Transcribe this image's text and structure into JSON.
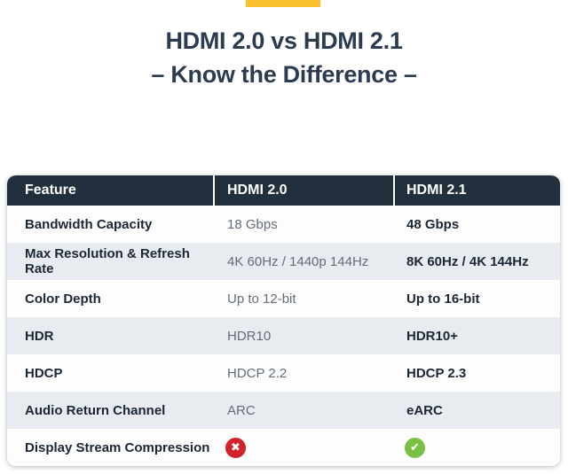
{
  "page": {
    "background": "#ffffff",
    "accent_color": "#fcc12f",
    "title_color": "#2b3c52",
    "title_line1": "HDMI 2.0 vs HDMI 2.1",
    "title_line2": "– Know the Difference –"
  },
  "table": {
    "header_bg": "#22303e",
    "stripe_bg": "#e8ecf1",
    "columns": [
      "Feature",
      "HDMI 2.0",
      "HDMI 2.1"
    ],
    "rows": [
      {
        "feature": "Bandwidth Capacity",
        "hdmi20": "18 Gbps",
        "hdmi21": "48 Gbps"
      },
      {
        "feature": "Max Resolution & Refresh Rate",
        "hdmi20": "4K 60Hz / 1440p 144Hz",
        "hdmi21": "8K 60Hz / 4K 144Hz"
      },
      {
        "feature": "Color Depth",
        "hdmi20": "Up to 12-bit",
        "hdmi21": "Up to 16-bit"
      },
      {
        "feature": "HDR",
        "hdmi20": "HDR10",
        "hdmi21": "HDR10+"
      },
      {
        "feature": "HDCP",
        "hdmi20": "HDCP 2.2",
        "hdmi21": "HDCP 2.3"
      },
      {
        "feature": "Audio Return Channel",
        "hdmi20": "ARC",
        "hdmi21": "eARC"
      },
      {
        "feature": "Display Stream Compression",
        "hdmi20": "",
        "hdmi21": ""
      }
    ],
    "icons": {
      "cross": {
        "name": "cross-icon",
        "glyph": "✖",
        "color": "#d2232a"
      },
      "check": {
        "name": "check-icon",
        "glyph": "✔",
        "color": "#7ac143"
      }
    }
  }
}
